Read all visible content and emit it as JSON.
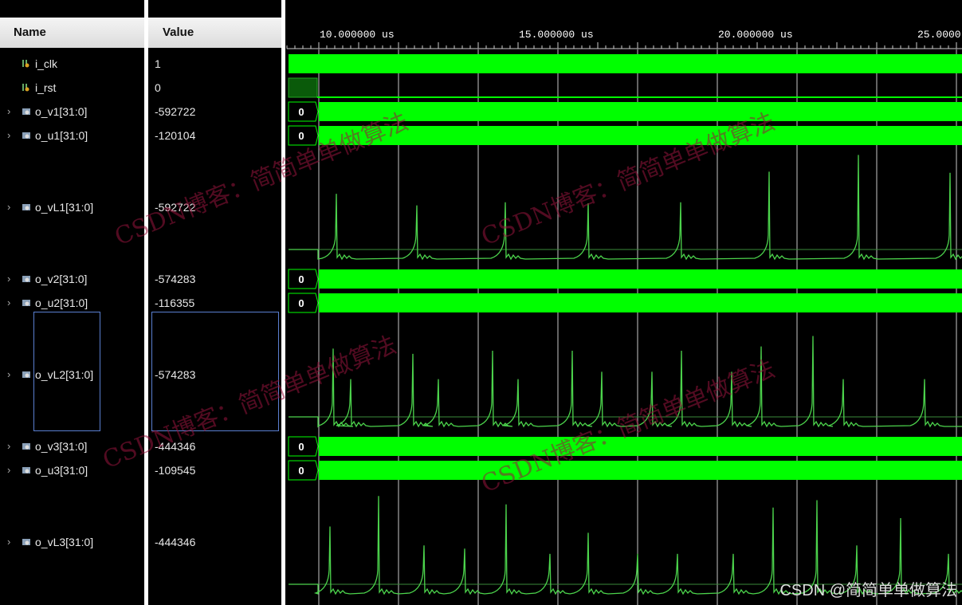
{
  "header": {
    "name": "Name",
    "value": "Value"
  },
  "timeline": {
    "labels": [
      "10.000000 us",
      "15.000000 us",
      "20.000000 us",
      "25.0000"
    ]
  },
  "signals": [
    {
      "name": "i_clk",
      "value": "1",
      "type": "bit",
      "bus": false,
      "icon": "bit-signal-icon"
    },
    {
      "name": "i_rst",
      "value": "0",
      "type": "bit",
      "bus": false,
      "icon": "bit-signal-icon"
    },
    {
      "name": "o_v1[31:0]",
      "value": "-592722",
      "type": "bus",
      "bus": true,
      "icon": "bus-signal-icon",
      "init": "0"
    },
    {
      "name": "o_u1[31:0]",
      "value": "-120104",
      "type": "bus",
      "bus": true,
      "icon": "bus-signal-icon",
      "init": "0"
    },
    {
      "name": "o_vL1[31:0]",
      "value": "-592722",
      "type": "analog",
      "bus": true,
      "icon": "bus-signal-icon"
    },
    {
      "name": "o_v2[31:0]",
      "value": "-574283",
      "type": "bus",
      "bus": true,
      "icon": "bus-signal-icon",
      "init": "0"
    },
    {
      "name": "o_u2[31:0]",
      "value": "-116355",
      "type": "bus",
      "bus": true,
      "icon": "bus-signal-icon",
      "init": "0"
    },
    {
      "name": "o_vL2[31:0]",
      "value": "-574283",
      "type": "analog",
      "bus": true,
      "icon": "bus-signal-icon",
      "selected": true
    },
    {
      "name": "o_v3[31:0]",
      "value": "-444346",
      "type": "bus",
      "bus": true,
      "icon": "bus-signal-icon",
      "init": "0"
    },
    {
      "name": "o_u3[31:0]",
      "value": "-109545",
      "type": "bus",
      "bus": true,
      "icon": "bus-signal-icon",
      "init": "0"
    },
    {
      "name": "o_vL3[31:0]",
      "value": "-444346",
      "type": "analog",
      "bus": true,
      "icon": "bus-signal-icon"
    }
  ],
  "spikes": {
    "o_vL1[31:0]": {
      "times_us": [
        10.44,
        12.46,
        14.68,
        16.76,
        19.08,
        21.3,
        23.54,
        25.84
      ],
      "amplitude": [
        0.62,
        0.51,
        0.54,
        0.53,
        0.54,
        0.83,
        0.99,
        0.82
      ]
    },
    "o_vL2[31:0]": {
      "times_us": [
        10.36,
        10.8,
        12.36,
        13.0,
        14.36,
        15.0,
        16.36,
        17.1,
        18.36,
        19.1,
        20.36,
        21.1,
        22.4,
        23.16,
        25.2
      ],
      "amplitude": [
        0.74,
        0.45,
        0.69,
        0.45,
        0.72,
        0.45,
        0.72,
        0.52,
        0.52,
        0.72,
        0.52,
        0.76,
        0.86,
        0.45,
        0.45
      ]
    },
    "o_vL3[31:0]": {
      "times_us": [
        10.28,
        11.5,
        12.64,
        13.66,
        14.7,
        15.8,
        16.76,
        18.0,
        19.0,
        20.4,
        21.4,
        22.5,
        23.5,
        24.6,
        25.8
      ],
      "amplitude": [
        0.64,
        0.93,
        0.46,
        0.43,
        0.85,
        0.38,
        0.58,
        0.38,
        0.38,
        0.38,
        0.82,
        0.89,
        0.46,
        0.72,
        0.38
      ]
    }
  },
  "colors": {
    "wave": "#00ff00",
    "analog": "#4cd44c",
    "grid": "#c8c8c8",
    "rst": "#0a5a0a"
  },
  "watermark": {
    "text": "CSDN博客：简简单单做算法",
    "credit": "CSDN @简简单单做算法"
  }
}
